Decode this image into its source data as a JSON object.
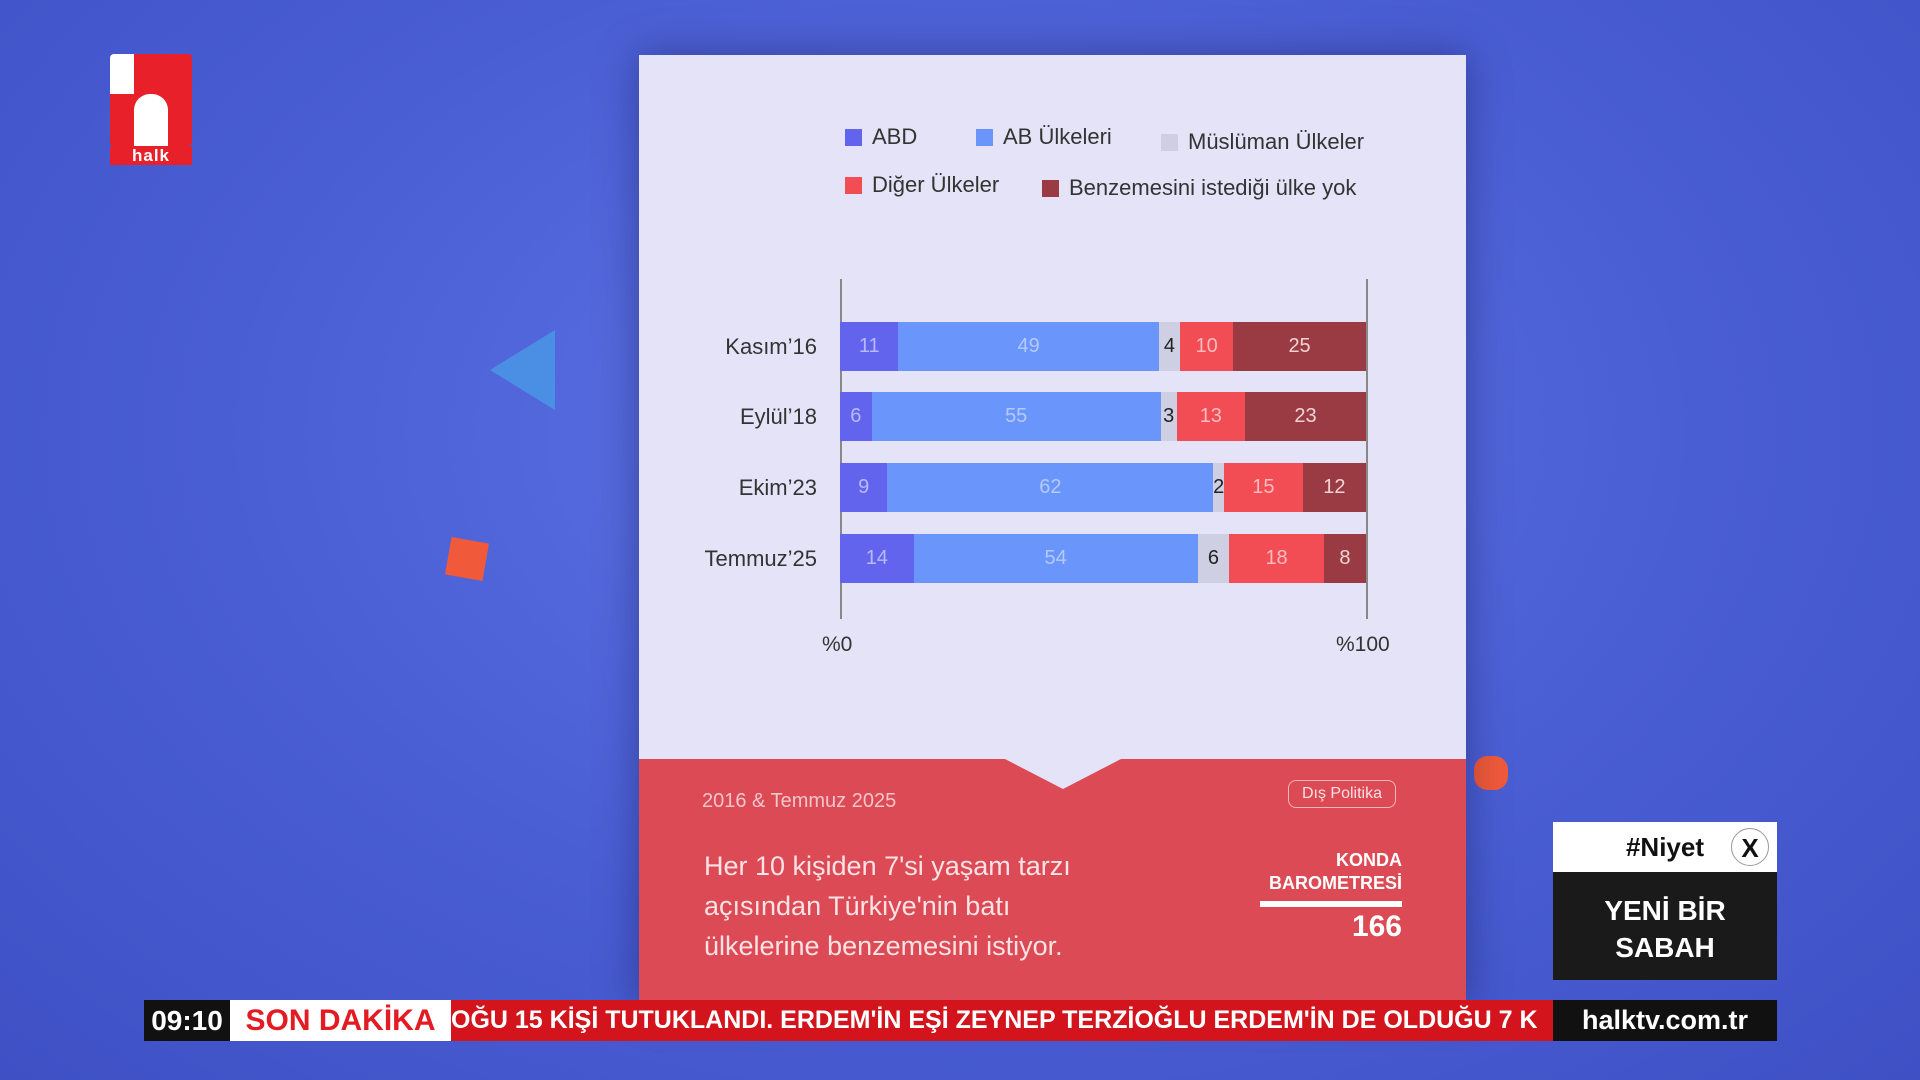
{
  "logo": {
    "text": "halk"
  },
  "chart_data": {
    "type": "bar",
    "orientation": "horizontal-stacked-100",
    "categories": [
      "Kasım’16",
      "Eylül’18",
      "Ekim’23",
      "Temmuz’25"
    ],
    "series": [
      {
        "name": "ABD",
        "color": "#6264ee",
        "text": "#b8baf8",
        "values": [
          11,
          6,
          9,
          14
        ]
      },
      {
        "name": "AB Ülkeleri",
        "color": "#6a95fb",
        "text": "#b4cafc",
        "values": [
          49,
          55,
          62,
          54
        ]
      },
      {
        "name": "Müslüman Ülkeler",
        "color": "#cfcfe3",
        "text": "#222",
        "values": [
          4,
          3,
          2,
          6
        ]
      },
      {
        "name": "Diğer Ülkeler",
        "color": "#f24c55",
        "text": "#fcbcc0",
        "values": [
          10,
          13,
          15,
          18
        ]
      },
      {
        "name": "Benzemesini istediği ülke yok",
        "color": "#9a3b44",
        "text": "#f1d3d6",
        "values": [
          25,
          23,
          12,
          8
        ]
      }
    ],
    "xlim": [
      0,
      100
    ],
    "tick_labels": [
      "%0",
      "%100"
    ],
    "legend": "top"
  },
  "card": {
    "date": "2016 & Temmuz 2025",
    "tag": "Dış Politika",
    "description": [
      "Her 10 kişiden 7'si yaşam tarzı",
      "açısından Türkiye'nin batı",
      "ülkelerine benzemesini istiyor."
    ],
    "konda1": "KONDA",
    "konda2": "BAROMETRESİ",
    "number": "166"
  },
  "niyet": {
    "hashtag": "#Niyet",
    "x": "X",
    "line1": "YENİ BİR",
    "line2": "SABAH"
  },
  "ticker": {
    "time": "09:10",
    "label": "SON DAKİKA",
    "text": "OĞU 15 KİŞİ TUTUKLANDI. ERDEM'İN EŞİ ZEYNEP TERZİOĞLU ERDEM'İN DE OLDUĞU 7 K",
    "site": "halktv.com.tr"
  }
}
